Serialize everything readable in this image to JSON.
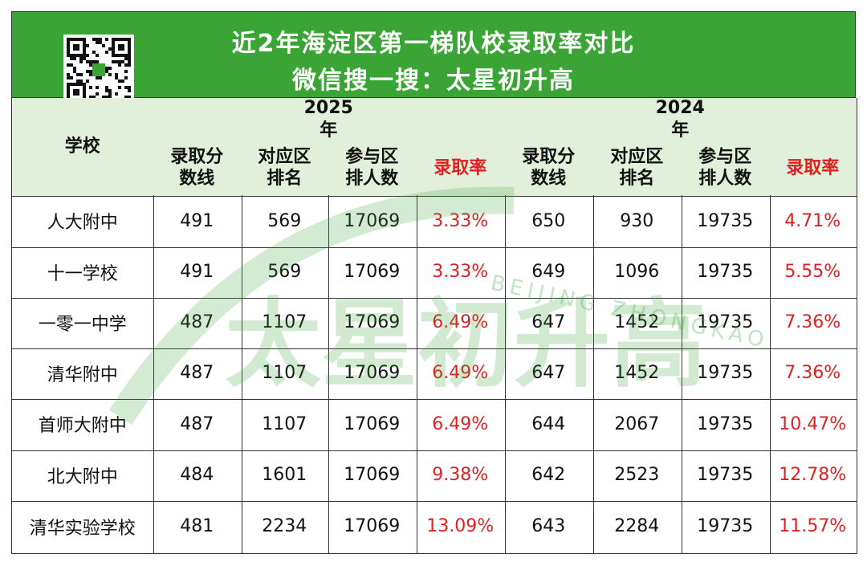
{
  "header": {
    "title": "近2年海淀区第一梯队校录取率对比",
    "subtitle": "微信搜一搜：太星初升高"
  },
  "watermark": {
    "brand": "太星初升高",
    "tagline": "BEIJING ZHONGKAO"
  },
  "table": {
    "school_header": "学校",
    "groups": [
      {
        "year": "2025年",
        "columns": [
          "录取分数线",
          "对应区排名",
          "参与区排人数",
          "录取率"
        ]
      },
      {
        "year": "2024年",
        "columns": [
          "录取分数线",
          "对应区排名",
          "参与区排人数",
          "录取率"
        ]
      }
    ],
    "rows": [
      [
        "人大附中",
        "491",
        "569",
        "17069",
        "3.33%",
        "650",
        "930",
        "19735",
        "4.71%"
      ],
      [
        "十一学校",
        "491",
        "569",
        "17069",
        "3.33%",
        "649",
        "1096",
        "19735",
        "5.55%"
      ],
      [
        "一零一中学",
        "487",
        "1107",
        "17069",
        "6.49%",
        "647",
        "1452",
        "19735",
        "7.36%"
      ],
      [
        "清华附中",
        "487",
        "1107",
        "17069",
        "6.49%",
        "647",
        "1452",
        "19735",
        "7.36%"
      ],
      [
        "首师大附中",
        "487",
        "1107",
        "17069",
        "6.49%",
        "644",
        "2067",
        "19735",
        "10.47%"
      ],
      [
        "北大附中",
        "484",
        "1601",
        "17069",
        "9.38%",
        "642",
        "2523",
        "19735",
        "12.78%"
      ],
      [
        "清华实验学校",
        "481",
        "2234",
        "17069",
        "13.09%",
        "643",
        "2284",
        "19735",
        "11.57%"
      ]
    ]
  }
}
